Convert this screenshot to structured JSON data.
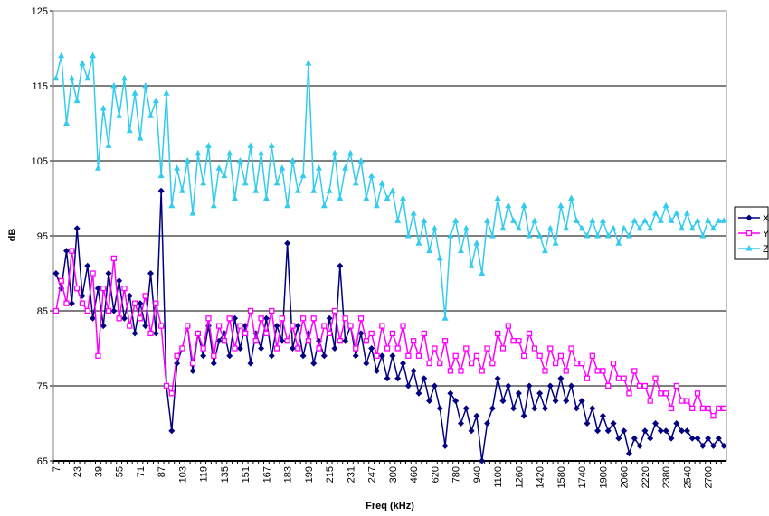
{
  "chart_data": {
    "type": "line",
    "x_label": "Freq (kHz)",
    "y_label": "dB",
    "categories": [
      "7",
      null,
      null,
      null,
      "23",
      null,
      null,
      null,
      "39",
      null,
      null,
      null,
      "55",
      null,
      null,
      null,
      "71",
      null,
      null,
      null,
      "87",
      null,
      null,
      null,
      "103",
      null,
      null,
      null,
      "119",
      null,
      null,
      null,
      "135",
      null,
      null,
      null,
      "151",
      null,
      null,
      null,
      "167",
      null,
      null,
      null,
      "183",
      null,
      null,
      null,
      "199",
      null,
      null,
      null,
      "215",
      null,
      null,
      null,
      "231",
      null,
      null,
      null,
      "247",
      null,
      null,
      null,
      "300",
      null,
      null,
      null,
      "460",
      null,
      null,
      null,
      "620",
      null,
      null,
      null,
      "780",
      null,
      null,
      null,
      "940",
      null,
      null,
      null,
      "1100",
      null,
      null,
      null,
      "1260",
      null,
      null,
      null,
      "1420",
      null,
      null,
      null,
      "1580",
      null,
      null,
      null,
      "1740",
      null,
      null,
      null,
      "1900",
      null,
      null,
      null,
      "2060",
      null,
      null,
      null,
      "2220",
      null,
      null,
      null,
      "2380",
      null,
      null,
      null,
      "2540",
      null,
      null,
      null,
      "2700",
      null,
      null,
      null
    ],
    "ylim": [
      65,
      125
    ],
    "yticks": [
      65,
      75,
      85,
      95,
      105,
      115,
      125
    ],
    "grid": true,
    "legend": "right",
    "series": [
      {
        "name": "X",
        "color": "#000080",
        "marker": "diamond",
        "values": [
          90,
          88,
          93,
          86,
          96,
          87,
          91,
          84,
          88,
          83,
          90,
          85,
          89,
          84,
          87,
          82,
          86,
          83,
          90,
          82,
          101,
          75,
          69,
          78,
          80,
          83,
          77,
          82,
          79,
          83,
          78,
          81,
          82,
          79,
          84,
          80,
          83,
          78,
          82,
          80,
          84,
          79,
          83,
          81,
          94,
          80,
          83,
          79,
          82,
          78,
          81,
          79,
          84,
          80,
          91,
          81,
          83,
          79,
          82,
          78,
          80,
          77,
          79,
          76,
          79,
          76,
          78,
          75,
          77,
          74,
          76,
          73,
          75,
          72,
          67,
          74,
          73,
          70,
          72,
          69,
          71,
          65,
          70,
          72,
          76,
          73,
          75,
          72,
          74,
          71,
          75,
          72,
          74,
          72,
          75,
          73,
          76,
          73,
          75,
          72,
          73,
          70,
          72,
          69,
          71,
          69,
          70,
          68,
          69,
          66,
          68,
          67,
          69,
          68,
          70,
          69,
          69,
          68,
          70,
          69,
          69,
          68,
          68,
          67,
          68,
          67,
          68,
          67
        ]
      },
      {
        "name": "Y",
        "color": "#ff00ff",
        "marker": "square",
        "values": [
          85,
          89,
          86,
          93,
          88,
          86,
          85,
          90,
          79,
          88,
          85,
          92,
          84,
          88,
          83,
          86,
          84,
          87,
          82,
          86,
          83,
          75,
          74,
          79,
          80,
          83,
          78,
          82,
          80,
          84,
          79,
          83,
          81,
          84,
          80,
          83,
          82,
          85,
          81,
          84,
          82,
          85,
          80,
          84,
          81,
          83,
          80,
          84,
          81,
          84,
          80,
          83,
          82,
          85,
          81,
          84,
          83,
          80,
          84,
          81,
          82,
          79,
          83,
          80,
          82,
          80,
          83,
          79,
          81,
          79,
          82,
          78,
          80,
          78,
          81,
          77,
          79,
          77,
          80,
          78,
          79,
          77,
          80,
          78,
          82,
          80,
          83,
          81,
          81,
          79,
          82,
          80,
          79,
          77,
          80,
          78,
          79,
          77,
          80,
          78,
          78,
          76,
          79,
          77,
          77,
          75,
          78,
          76,
          76,
          74,
          77,
          75,
          75,
          73,
          76,
          74,
          74,
          72,
          75,
          73,
          73,
          72,
          74,
          72,
          72,
          71,
          72,
          72
        ]
      },
      {
        "name": "Z",
        "color": "#33ccee",
        "marker": "triangle",
        "values": [
          116,
          119,
          110,
          116,
          113,
          118,
          116,
          119,
          104,
          112,
          107,
          115,
          111,
          116,
          109,
          114,
          108,
          115,
          111,
          113,
          103,
          114,
          99,
          104,
          101,
          105,
          98,
          106,
          102,
          107,
          99,
          104,
          103,
          106,
          100,
          105,
          102,
          107,
          101,
          106,
          100,
          107,
          102,
          104,
          99,
          105,
          101,
          103,
          118,
          101,
          104,
          99,
          101,
          106,
          100,
          104,
          106,
          102,
          105,
          100,
          103,
          99,
          102,
          100,
          101,
          97,
          100,
          95,
          98,
          94,
          97,
          93,
          96,
          92,
          84,
          95,
          97,
          93,
          96,
          91,
          94,
          90,
          97,
          95,
          100,
          96,
          99,
          97,
          96,
          99,
          95,
          97,
          95,
          93,
          96,
          94,
          99,
          96,
          100,
          97,
          96,
          95,
          97,
          95,
          97,
          95,
          96,
          94,
          96,
          95,
          97,
          96,
          97,
          96,
          98,
          97,
          99,
          97,
          98,
          96,
          98,
          96,
          97,
          95,
          97,
          96,
          97,
          97
        ]
      }
    ]
  }
}
